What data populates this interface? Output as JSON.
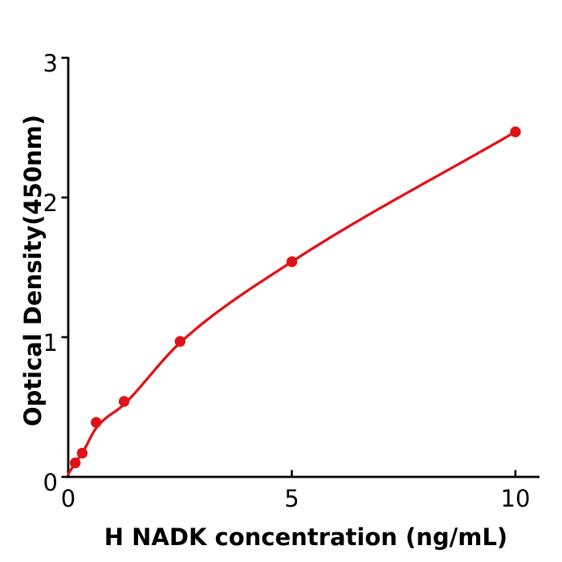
{
  "figure": {
    "background": "#ffffff"
  },
  "chart_data": {
    "type": "scatter",
    "title": "",
    "xlabel": "H  NADK concentration (ng/mL)",
    "ylabel": "Optical Density(450nm)",
    "xlim": [
      0,
      10.55
    ],
    "ylim": [
      0,
      3
    ],
    "xticks": [
      0,
      5,
      10
    ],
    "yticks": [
      0,
      1,
      2,
      3
    ],
    "grid": false,
    "legend": false,
    "points": {
      "name": "standard-points",
      "x": [
        0.156,
        0.3125,
        0.625,
        1.25,
        2.5,
        5,
        10
      ],
      "od": [
        0.1,
        0.17,
        0.39,
        0.54,
        0.97,
        1.54,
        2.47
      ]
    },
    "fit_curve_knots": {
      "x": [
        0,
        0.156,
        0.3125,
        0.625,
        1.25,
        2.5,
        5,
        10
      ],
      "od": [
        0.02,
        0.1,
        0.17,
        0.35,
        0.52,
        0.96,
        1.54,
        2.47
      ]
    },
    "colors": {
      "series": "#e01218",
      "axis": "#000000",
      "text": "#000000"
    }
  }
}
